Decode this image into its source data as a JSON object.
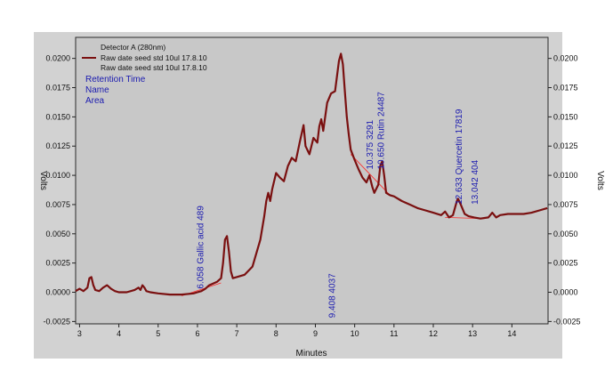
{
  "chart_data": {
    "type": "line",
    "xlabel": "Minutes",
    "ylabel_left": "Volts",
    "ylabel_right": "Volts",
    "xlim": [
      2.9,
      14.92
    ],
    "ylim": [
      -0.0027,
      0.0218
    ],
    "x_ticks": [
      "3",
      "4",
      "5",
      "6",
      "7",
      "8",
      "9",
      "10",
      "11",
      "12",
      "13",
      "14"
    ],
    "y_ticks": [
      "-0.0025",
      "0.0000",
      "0.0025",
      "0.0050",
      "0.0075",
      "0.0100",
      "0.0125",
      "0.0150",
      "0.0175",
      "0.0200"
    ],
    "legend": {
      "header": "Detector A (280nm)",
      "entries": [
        "Raw date seed std 10ul 17.8.10",
        "Raw date seed std 10ul 17.8.10"
      ],
      "label_types": [
        "Retention Time",
        "Name",
        "Area"
      ]
    },
    "colors": {
      "plot_background": "#c8c8c8",
      "trace": "#7a1010",
      "baseline": "#ff2a2a",
      "label": "#1b1bb0"
    },
    "series": [
      {
        "name": "Raw date seed std 10ul 17.8.10",
        "x": [
          2.9,
          3.0,
          3.1,
          3.2,
          3.25,
          3.3,
          3.35,
          3.4,
          3.5,
          3.6,
          3.7,
          3.8,
          3.9,
          4.0,
          4.2,
          4.4,
          4.5,
          4.55,
          4.6,
          4.65,
          4.7,
          4.8,
          5.0,
          5.3,
          5.6,
          5.9,
          6.0,
          6.1,
          6.2,
          6.3,
          6.5,
          6.6,
          6.65,
          6.7,
          6.75,
          6.8,
          6.85,
          6.9,
          7.0,
          7.2,
          7.4,
          7.6,
          7.7,
          7.75,
          7.8,
          7.85,
          7.9,
          8.0,
          8.1,
          8.2,
          8.3,
          8.4,
          8.5,
          8.6,
          8.7,
          8.75,
          8.85,
          8.95,
          9.05,
          9.1,
          9.15,
          9.2,
          9.3,
          9.4,
          9.5,
          9.6,
          9.65,
          9.7,
          9.75,
          9.8,
          9.85,
          9.9,
          10.0,
          10.1,
          10.2,
          10.3,
          10.375,
          10.45,
          10.5,
          10.6,
          10.65,
          10.7,
          10.75,
          10.8,
          10.9,
          11.0,
          11.2,
          11.4,
          11.6,
          11.8,
          12.0,
          12.2,
          12.3,
          12.4,
          12.5,
          12.6,
          12.63,
          12.7,
          12.8,
          12.9,
          13.04,
          13.2,
          13.4,
          13.5,
          13.6,
          13.7,
          13.9,
          14.1,
          14.3,
          14.5,
          14.7,
          14.9
        ],
        "values": [
          0.0001,
          0.0003,
          0.0001,
          0.0004,
          0.0012,
          0.0013,
          0.0006,
          0.0002,
          0.0001,
          0.0004,
          0.0006,
          0.0003,
          0.0001,
          0.0,
          0.0,
          0.0002,
          0.0004,
          0.0002,
          0.0006,
          0.0004,
          0.0001,
          0.0,
          -0.0001,
          -0.0002,
          -0.0002,
          -0.0001,
          0.0,
          0.0001,
          0.0003,
          0.0006,
          0.0009,
          0.0012,
          0.0025,
          0.0045,
          0.0048,
          0.0035,
          0.0018,
          0.0012,
          0.0013,
          0.0015,
          0.0022,
          0.0045,
          0.0065,
          0.0078,
          0.0085,
          0.0078,
          0.0088,
          0.0102,
          0.0098,
          0.0095,
          0.0108,
          0.0115,
          0.0112,
          0.0128,
          0.0143,
          0.0125,
          0.0118,
          0.0132,
          0.0128,
          0.0142,
          0.0148,
          0.0138,
          0.0162,
          0.017,
          0.0172,
          0.0198,
          0.0204,
          0.0195,
          0.0172,
          0.015,
          0.0135,
          0.0122,
          0.0113,
          0.0105,
          0.0098,
          0.0094,
          0.01,
          0.009,
          0.0085,
          0.0092,
          0.0108,
          0.0112,
          0.01,
          0.0085,
          0.0083,
          0.0082,
          0.0078,
          0.0075,
          0.0072,
          0.007,
          0.0068,
          0.0066,
          0.0069,
          0.0064,
          0.0066,
          0.0078,
          0.008,
          0.0075,
          0.0067,
          0.0065,
          0.0064,
          0.0063,
          0.0064,
          0.0068,
          0.0064,
          0.0066,
          0.0067,
          0.0067,
          0.0067,
          0.0068,
          0.007,
          0.0072
        ]
      }
    ],
    "peaks": [
      {
        "retention_time": "6.058",
        "name": "Gallic acid",
        "area": "489",
        "x": 6.058
      },
      {
        "retention_time": "9.408",
        "name": "",
        "area": "4037",
        "x": 9.408
      },
      {
        "retention_time": "10.375",
        "name": "",
        "area": "3291",
        "x": 10.375
      },
      {
        "retention_time": "10.650",
        "name": "Rutin",
        "area": "24487",
        "x": 10.65
      },
      {
        "retention_time": "12.633",
        "name": "Quercetin",
        "area": "17819",
        "x": 12.633
      },
      {
        "retention_time": "13.042",
        "name": "",
        "area": "404",
        "x": 13.042
      }
    ]
  }
}
